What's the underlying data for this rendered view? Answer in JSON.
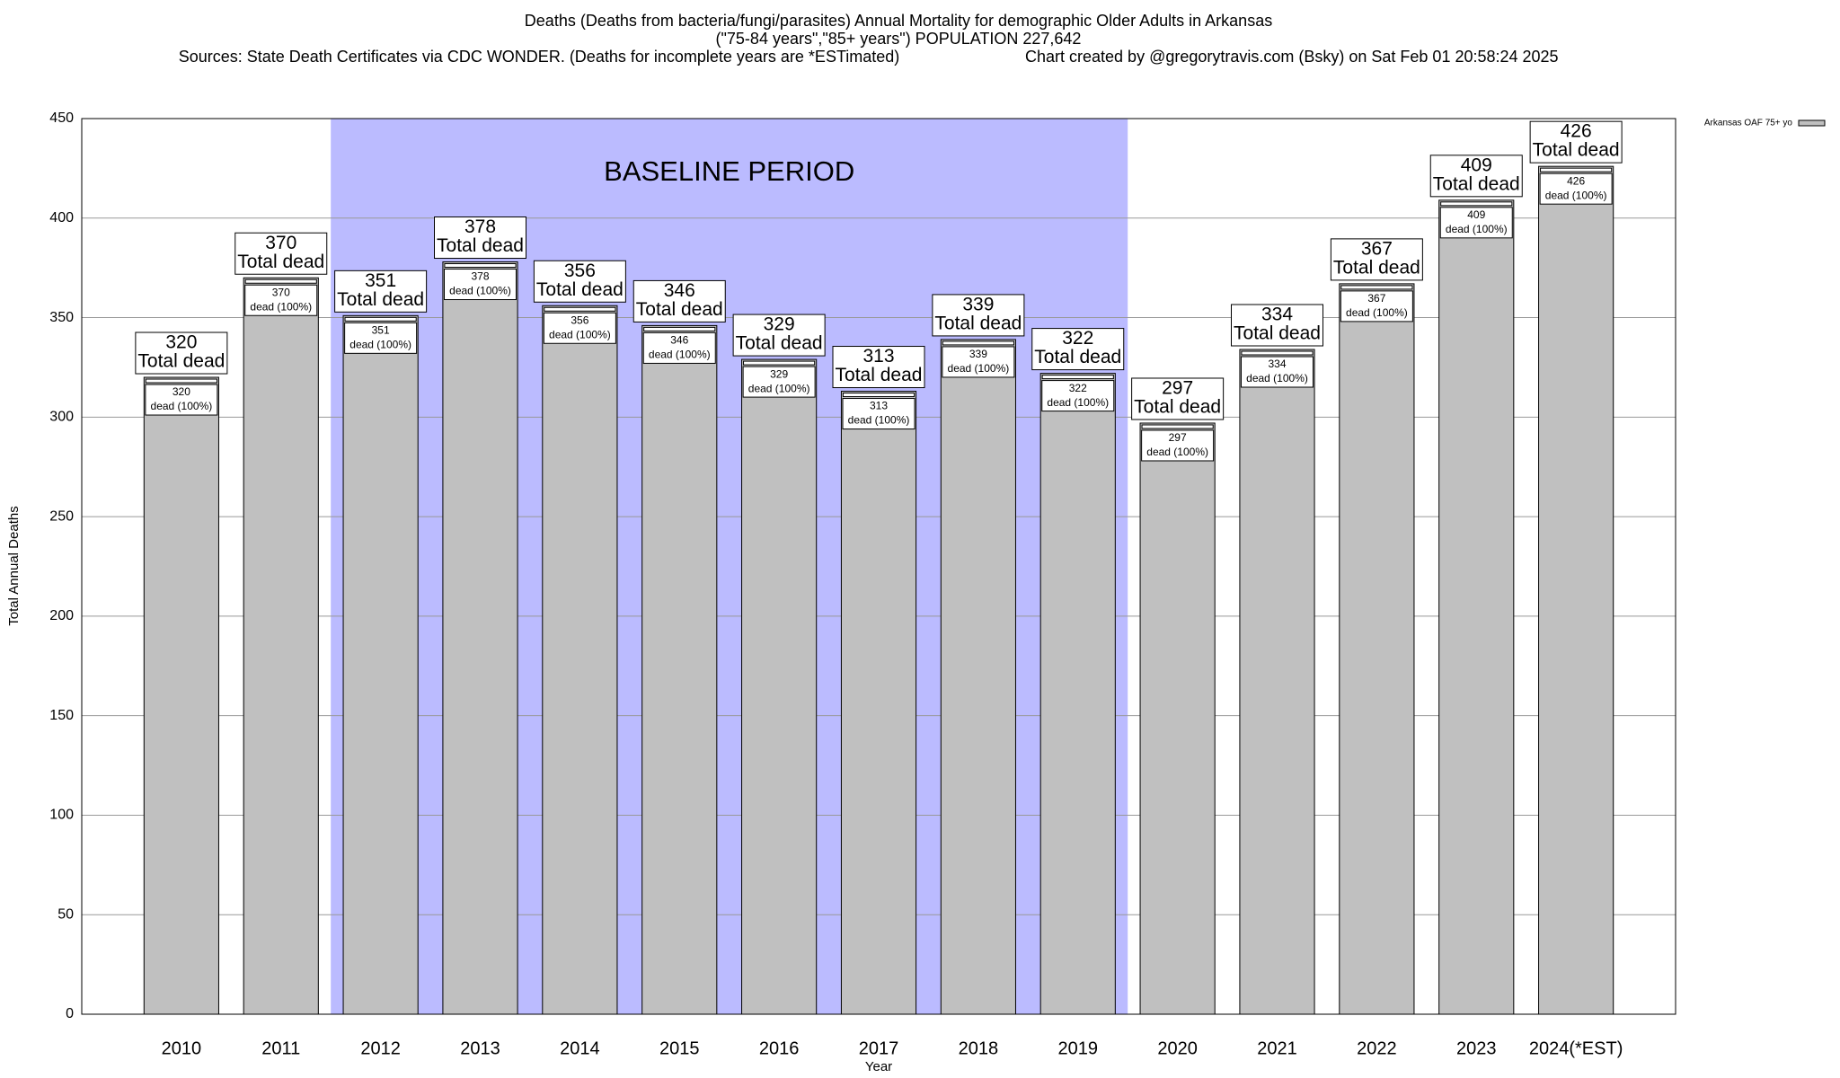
{
  "chart_data": {
    "type": "bar",
    "title": "Deaths (Deaths from bacteria/fungi/parasites) Annual Mortality for demographic Older Adults in Arkansas",
    "subtitle": "(\"75-84 years\",\"85+ years\") POPULATION 227,642",
    "sources": "Sources: State Death Certificates via CDC WONDER. (Deaths for incomplete years are *ESTimated)",
    "credit": "Chart created by @gregorytravis.com (Bsky) on Sat Feb 01 20:58:24 2025",
    "xlabel": "Year",
    "ylabel": "Total Annual Deaths",
    "annotation": "BASELINE PERIOD",
    "categories": [
      "2010",
      "2011",
      "2012",
      "2013",
      "2014",
      "2015",
      "2016",
      "2017",
      "2018",
      "2019",
      "2020",
      "2021",
      "2022",
      "2023",
      "2024(*EST)"
    ],
    "series": [
      {
        "name": "Arkansas OAF 75+ yo",
        "color": "#c0c0c0",
        "values": [
          320,
          370,
          351,
          378,
          356,
          346,
          329,
          313,
          339,
          322,
          297,
          334,
          367,
          409,
          426
        ]
      }
    ],
    "total_label": "Total dead",
    "inner_label": "dead (100%)",
    "ylim": [
      0,
      450
    ],
    "yticks": [
      0,
      50,
      100,
      150,
      200,
      250,
      300,
      350,
      400,
      450
    ],
    "grid": true,
    "shade_color": "#bbbbff",
    "legend": "top-right"
  }
}
